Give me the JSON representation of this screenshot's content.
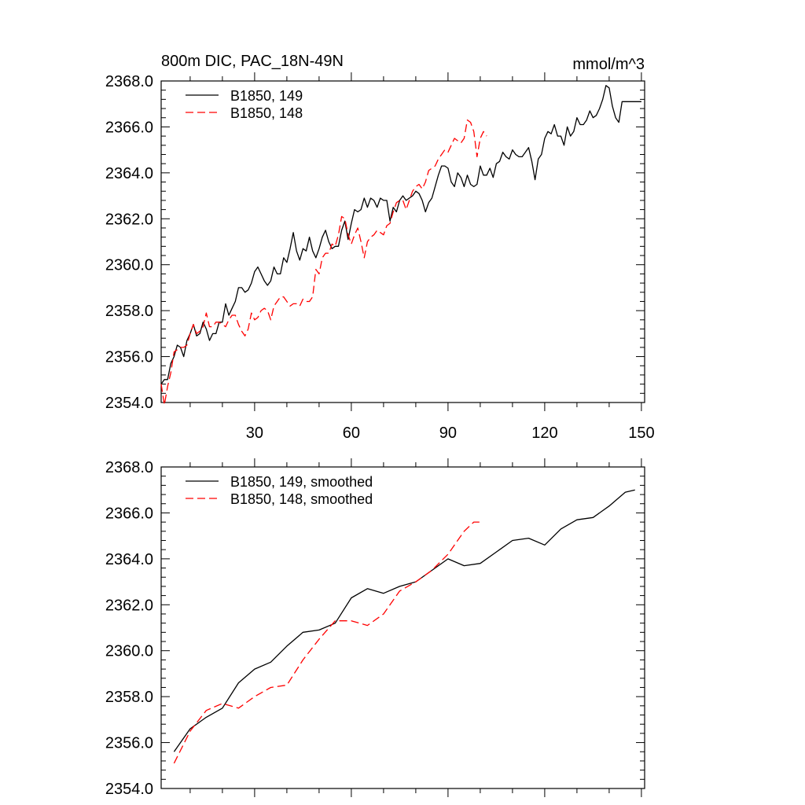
{
  "chart_data": [
    {
      "type": "line",
      "title": "800m DIC, PAC_18N-49N",
      "units": "mmol/m^3",
      "xlabel": "",
      "ylabel": "",
      "xlim": [
        1,
        151
      ],
      "ylim": [
        2354.0,
        2368.0
      ],
      "xticks": [
        30,
        60,
        90,
        120,
        150
      ],
      "xtick_labels": [
        "30",
        "60",
        "90",
        "120",
        "150"
      ],
      "yticks": [
        2354,
        2356,
        2358,
        2360,
        2362,
        2364,
        2366,
        2368
      ],
      "ytick_labels": [
        "2354.0",
        "2356.0",
        "2358.0",
        "2360.0",
        "2362.0",
        "2364.0",
        "2366.0",
        "2368.0"
      ],
      "legend_position": "top-left",
      "series": [
        {
          "name": "B1850, 149",
          "color": "#000000",
          "dash": "solid",
          "x": [
            1,
            2,
            3,
            4,
            5,
            6,
            7,
            8,
            9,
            10,
            11,
            12,
            13,
            14,
            15,
            16,
            17,
            18,
            19,
            20,
            21,
            22,
            23,
            24,
            25,
            26,
            27,
            28,
            29,
            30,
            31,
            32,
            33,
            34,
            35,
            36,
            37,
            38,
            39,
            40,
            41,
            42,
            43,
            44,
            45,
            46,
            47,
            48,
            49,
            50,
            51,
            52,
            53,
            54,
            55,
            56,
            57,
            58,
            59,
            60,
            61,
            62,
            63,
            64,
            65,
            66,
            67,
            68,
            69,
            70,
            71,
            72,
            73,
            74,
            75,
            76,
            77,
            78,
            79,
            80,
            81,
            82,
            83,
            84,
            85,
            86,
            87,
            88,
            89,
            90,
            91,
            92,
            93,
            94,
            95,
            96,
            97,
            98,
            99,
            100,
            101,
            102,
            103,
            104,
            105,
            106,
            107,
            108,
            109,
            110,
            111,
            112,
            113,
            114,
            115,
            116,
            117,
            118,
            119,
            120,
            121,
            122,
            123,
            124,
            125,
            126,
            127,
            128,
            129,
            130,
            131,
            132,
            133,
            134,
            135,
            136,
            137,
            138,
            139,
            140,
            141,
            142,
            143,
            144,
            145,
            146,
            147,
            148,
            149,
            150
          ],
          "values": [
            2354.8,
            2355.0,
            2355.0,
            2355.7,
            2356.0,
            2356.5,
            2356.4,
            2356.0,
            2356.7,
            2357.0,
            2357.4,
            2356.9,
            2357.0,
            2357.5,
            2357.2,
            2356.7,
            2357.0,
            2357.0,
            2357.5,
            2357.5,
            2358.3,
            2357.8,
            2358.1,
            2358.4,
            2359.0,
            2359.0,
            2358.8,
            2358.9,
            2359.2,
            2359.7,
            2359.9,
            2359.6,
            2359.3,
            2359.1,
            2359.3,
            2359.9,
            2359.6,
            2359.6,
            2360.3,
            2360.1,
            2360.7,
            2361.4,
            2360.6,
            2360.2,
            2360.7,
            2360.6,
            2361.2,
            2360.6,
            2360.3,
            2360.7,
            2361.2,
            2361.5,
            2361.0,
            2360.7,
            2360.8,
            2360.8,
            2361.5,
            2361.9,
            2361.1,
            2361.8,
            2362.4,
            2362.3,
            2362.4,
            2362.9,
            2362.5,
            2362.9,
            2362.8,
            2362.5,
            2362.9,
            2362.8,
            2362.8,
            2361.9,
            2362.5,
            2362.3,
            2362.8,
            2363.0,
            2362.8,
            2362.9,
            2363.0,
            2363.2,
            2363.1,
            2362.8,
            2362.3,
            2362.7,
            2362.9,
            2363.4,
            2363.9,
            2364.3,
            2364.3,
            2364.2,
            2363.6,
            2363.4,
            2364.0,
            2363.8,
            2363.4,
            2363.9,
            2363.5,
            2363.4,
            2363.5,
            2364.3,
            2363.9,
            2363.9,
            2364.2,
            2363.8,
            2364.4,
            2364.5,
            2364.9,
            2364.7,
            2364.6,
            2365.0,
            2364.8,
            2364.7,
            2364.7,
            2364.9,
            2365.1,
            2364.5,
            2363.7,
            2364.6,
            2364.8,
            2365.5,
            2365.8,
            2365.7,
            2366.1,
            2365.6,
            2365.6,
            2365.2,
            2366.0,
            2365.6,
            2365.8,
            2366.4,
            2366.1,
            2366.1,
            2366.3,
            2366.7,
            2366.4,
            2366.5,
            2366.8,
            2367.2,
            2367.8,
            2367.7,
            2366.9,
            2366.4,
            2366.2,
            2367.1,
            2367.1,
            2367.1,
            2367.1,
            2367.1,
            2367.1,
            2367.1
          ]
        },
        {
          "name": "B1850, 148",
          "color": "#ff0000",
          "dash": "dashed",
          "x": [
            1,
            2,
            3,
            4,
            5,
            6,
            7,
            8,
            9,
            10,
            11,
            12,
            13,
            14,
            15,
            16,
            17,
            18,
            19,
            20,
            21,
            22,
            23,
            24,
            25,
            26,
            27,
            28,
            29,
            30,
            31,
            32,
            33,
            34,
            35,
            36,
            37,
            38,
            39,
            40,
            41,
            42,
            43,
            44,
            45,
            46,
            47,
            48,
            49,
            50,
            51,
            52,
            53,
            54,
            55,
            56,
            57,
            58,
            59,
            60,
            61,
            62,
            63,
            64,
            65,
            66,
            67,
            68,
            69,
            70,
            71,
            72,
            73,
            74,
            75,
            76,
            77,
            78,
            79,
            80,
            81,
            82,
            83,
            84,
            85,
            86,
            87,
            88,
            89,
            90,
            91,
            92,
            93,
            94,
            95,
            96,
            97,
            98,
            99,
            100,
            101,
            102
          ],
          "values": [
            2354.8,
            2353.9,
            2354.7,
            2355.3,
            2356.2,
            2356.3,
            2356.4,
            2356.4,
            2356.5,
            2357.0,
            2357.4,
            2357.0,
            2357.1,
            2357.3,
            2357.9,
            2357.3,
            2357.3,
            2357.5,
            2357.5,
            2357.4,
            2357.3,
            2357.6,
            2357.8,
            2357.8,
            2357.4,
            2357.1,
            2356.9,
            2357.2,
            2357.9,
            2357.6,
            2357.7,
            2358.0,
            2358.1,
            2358.0,
            2357.6,
            2358.2,
            2358.4,
            2358.6,
            2358.6,
            2358.4,
            2358.2,
            2358.3,
            2358.3,
            2358.2,
            2358.5,
            2358.4,
            2358.4,
            2358.6,
            2359.8,
            2359.6,
            2360.3,
            2360.5,
            2360.5,
            2360.9,
            2360.8,
            2361.3,
            2362.1,
            2362.0,
            2361.3,
            2360.9,
            2361.3,
            2361.6,
            2361.0,
            2360.3,
            2361.0,
            2361.2,
            2361.3,
            2361.5,
            2361.4,
            2361.3,
            2361.7,
            2361.8,
            2362.3,
            2362.7,
            2362.8,
            2362.8,
            2362.4,
            2362.8,
            2363.2,
            2363.4,
            2363.5,
            2363.3,
            2363.6,
            2364.1,
            2364.2,
            2364.3,
            2364.6,
            2364.8,
            2365.0,
            2364.9,
            2365.2,
            2365.5,
            2365.4,
            2365.3,
            2365.5,
            2366.3,
            2366.2,
            2365.8,
            2364.7,
            2365.5,
            2365.8,
            2365.6
          ]
        }
      ]
    },
    {
      "type": "line",
      "title": "",
      "xlabel": "",
      "ylabel": "",
      "xlim": [
        1,
        151
      ],
      "ylim": [
        2354.0,
        2368.0
      ],
      "xticks": [
        30,
        60,
        90,
        120,
        150
      ],
      "xtick_labels": [],
      "yticks": [
        2354,
        2356,
        2358,
        2360,
        2362,
        2364,
        2366,
        2368
      ],
      "ytick_labels": [
        "2354.0",
        "2356.0",
        "2358.0",
        "2360.0",
        "2362.0",
        "2364.0",
        "2366.0",
        "2368.0"
      ],
      "legend_position": "top-left",
      "series": [
        {
          "name": "B1850, 149, smoothed",
          "color": "#000000",
          "dash": "solid",
          "x": [
            5,
            10,
            15,
            20,
            25,
            30,
            35,
            40,
            45,
            50,
            55,
            60,
            65,
            70,
            75,
            80,
            85,
            90,
            95,
            100,
            105,
            110,
            115,
            120,
            125,
            130,
            135,
            140,
            145,
            148
          ],
          "values": [
            2355.6,
            2356.6,
            2357.1,
            2357.5,
            2358.6,
            2359.2,
            2359.5,
            2360.2,
            2360.8,
            2360.9,
            2361.2,
            2362.3,
            2362.7,
            2362.5,
            2362.8,
            2363.0,
            2363.5,
            2364.0,
            2363.7,
            2363.8,
            2364.3,
            2364.8,
            2364.9,
            2364.6,
            2365.3,
            2365.7,
            2365.8,
            2366.3,
            2366.9,
            2367.0
          ]
        },
        {
          "name": "B1850, 148, smoothed",
          "color": "#ff0000",
          "dash": "dashed",
          "x": [
            5,
            10,
            15,
            20,
            25,
            30,
            35,
            40,
            45,
            50,
            55,
            60,
            65,
            70,
            75,
            80,
            85,
            90,
            95,
            98,
            100
          ],
          "values": [
            2355.1,
            2356.5,
            2357.4,
            2357.7,
            2357.5,
            2358.0,
            2358.4,
            2358.5,
            2359.6,
            2360.5,
            2361.3,
            2361.3,
            2361.1,
            2361.6,
            2362.6,
            2363.0,
            2363.5,
            2364.2,
            2365.2,
            2365.6,
            2365.6
          ]
        }
      ]
    }
  ]
}
